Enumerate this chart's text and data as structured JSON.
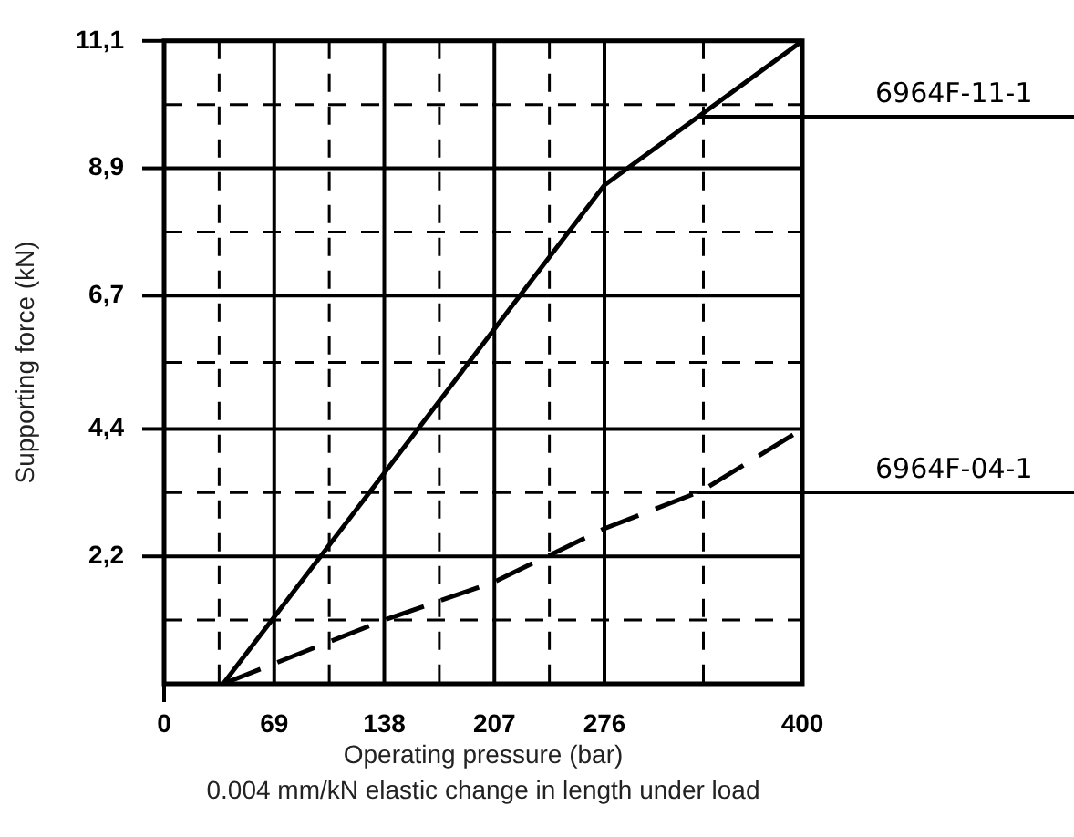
{
  "chart_data": {
    "type": "line",
    "xlabel": "Operating pressure (bar)",
    "ylabel": "Supporting force (kN)",
    "annotations": [
      "0.004 mm/kN elastic change in length under load"
    ],
    "xlim": [
      0,
      400
    ],
    "xticks": [
      0,
      {
        "value": 34.5,
        "label": null
      },
      69,
      {
        "value": 103.5,
        "label": null
      },
      138,
      {
        "value": 172.5,
        "label": null
      },
      207,
      {
        "value": 241.5,
        "label": null
      },
      276,
      {
        "value": 338,
        "label": null
      },
      400
    ],
    "ylim": [
      0,
      11.1
    ],
    "yticks": [
      {
        "value": 0,
        "label": null
      },
      {
        "value": 1.1,
        "label": null
      },
      {
        "value": 2.2,
        "label": "2,2"
      },
      {
        "value": 3.3,
        "label": null
      },
      {
        "value": 4.4,
        "label": "4,4"
      },
      {
        "value": 5.55,
        "label": null
      },
      {
        "value": 6.7,
        "label": "6,7"
      },
      {
        "value": 7.8,
        "label": null
      },
      {
        "value": 8.9,
        "label": "8,9"
      },
      {
        "value": 10,
        "label": null
      },
      {
        "value": 11.1,
        "label": "11,1"
      }
    ],
    "grid": true,
    "legend": false,
    "marker": "none",
    "series": [
      {
        "name": "6964F-11-1",
        "color": "#000000",
        "line_style": "solid",
        "x": [
          37,
          276,
          400
        ],
        "values": [
          0,
          8.61,
          11.1
        ]
      },
      {
        "name": "6964F-04-1",
        "color": "#000000",
        "line_style": "dashed",
        "x": [
          37,
          138,
          207,
          276,
          337,
          400
        ],
        "values": [
          0,
          1.1,
          1.76,
          2.68,
          3.33,
          4.4
        ]
      }
    ]
  }
}
